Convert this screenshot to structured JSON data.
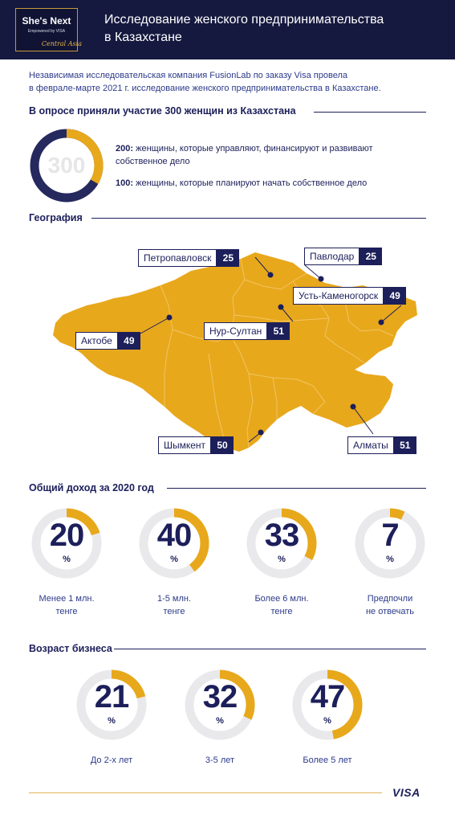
{
  "header": {
    "logo_title": "She's Next",
    "logo_sub": "Empowered by VISA",
    "logo_script": "Central Asia",
    "title_line1": "Исследование женского предпринимательства",
    "title_line2": "в Казахстане"
  },
  "intro": {
    "line1": "Независимая исследовательская компания FusionLab по заказу Visa провела",
    "line2": "в феврале-марте 2021 г. исследование женского предпринимательства в Казахстане."
  },
  "participants": {
    "title": "В опросе приняли участие 300 женщин из Казахстана",
    "total": "300",
    "total_value": 300,
    "group1_value": 200,
    "group1_num": "200:",
    "group1_text_a": " женщины, которые управляют, финансируют и развивают",
    "group1_text_b": "собственное дело",
    "group2_num": "100:",
    "group2_text": " женщины, которые планируют начать собственное дело"
  },
  "geography": {
    "title": "География",
    "cities": [
      {
        "name": "Петропавловск",
        "value": "25"
      },
      {
        "name": "Павлодар",
        "value": "25"
      },
      {
        "name": "Усть-Каменогорск",
        "value": "49"
      },
      {
        "name": "Нур-Султан",
        "value": "51"
      },
      {
        "name": "Актобе",
        "value": "49"
      },
      {
        "name": "Шымкент",
        "value": "50"
      },
      {
        "name": "Алматы",
        "value": "51"
      }
    ]
  },
  "income": {
    "title": "Общий доход за 2020 год",
    "items": [
      {
        "value": 20,
        "label": "20",
        "unit": "%",
        "caption1": "Менее 1 млн.",
        "caption2": "тенге"
      },
      {
        "value": 40,
        "label": "40",
        "unit": "%",
        "caption1": "1-5 млн.",
        "caption2": "тенге"
      },
      {
        "value": 33,
        "label": "33",
        "unit": "%",
        "caption1": "Более 6 млн.",
        "caption2": "тенге"
      },
      {
        "value": 7,
        "label": "7",
        "unit": "%",
        "caption1": "Предпочли",
        "caption2": "не отвечать"
      }
    ]
  },
  "business_age": {
    "title": "Возраст бизнеса",
    "items": [
      {
        "value": 21,
        "label": "21",
        "unit": "%",
        "caption1": "До 2-х лет",
        "caption2": ""
      },
      {
        "value": 32,
        "label": "32",
        "unit": "%",
        "caption1": "3-5 лет",
        "caption2": ""
      },
      {
        "value": 47,
        "label": "47",
        "unit": "%",
        "caption1": "Более 5 лет",
        "caption2": ""
      }
    ]
  },
  "footer": {
    "brand": "VISA"
  },
  "colors": {
    "navy": "#1c1f5a",
    "orange": "#e8a81c",
    "orange_light": "#f5c04a",
    "ring_bg": "#e9e9ec"
  }
}
